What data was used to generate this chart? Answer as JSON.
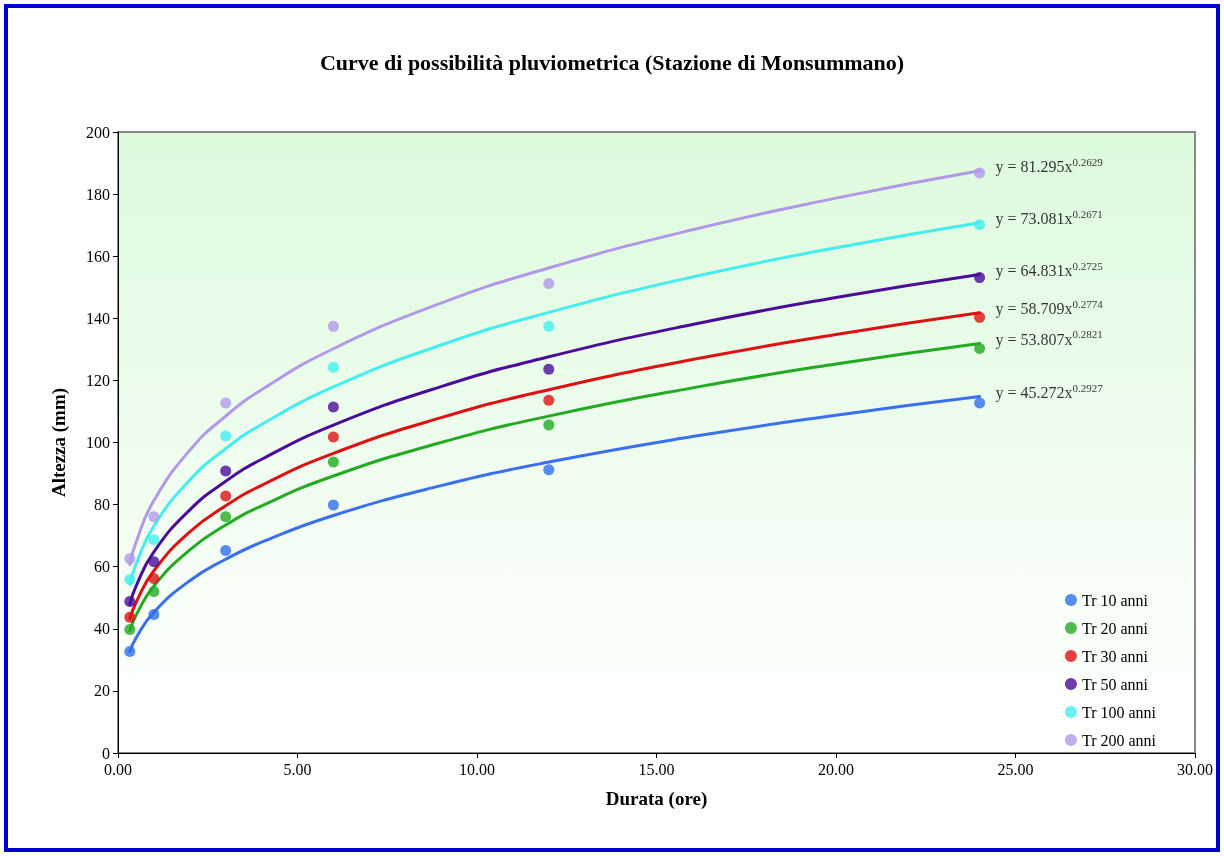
{
  "chart_data": {
    "type": "scatter",
    "title": "Curve di possibilità pluviometrica (Stazione di Monsummano)",
    "xlabel": "Durata (ore)",
    "ylabel": "Altezza (mm)",
    "xlim": [
      0,
      30
    ],
    "xticks": [
      {
        "value": 0,
        "label": "0.00"
      },
      {
        "value": 5,
        "label": "5.00"
      },
      {
        "value": 10,
        "label": "10.00"
      },
      {
        "value": 15,
        "label": "15.00"
      },
      {
        "value": 20,
        "label": "20.00"
      },
      {
        "value": 25,
        "label": "25.00"
      },
      {
        "value": 30,
        "label": "30.00"
      }
    ],
    "ylim": [
      0,
      200
    ],
    "yticks": [
      0,
      20,
      40,
      60,
      80,
      100,
      120,
      140,
      160,
      180,
      200
    ],
    "grid": false,
    "legend": "bottom right",
    "marker": "circle",
    "series": [
      {
        "name": "Tr 10 anni",
        "color": "#2f6fee",
        "x": [
          0.33,
          1,
          3,
          6,
          12,
          24
        ],
        "values": [
          32.7,
          44.6,
          65.2,
          79.9,
          91.2,
          112.7
        ]
      },
      {
        "name": "Tr 20 anni",
        "color": "#22aa22",
        "x": [
          0.33,
          1,
          3,
          6,
          12,
          24
        ],
        "values": [
          39.8,
          52.0,
          76.1,
          93.7,
          105.6,
          130.3
        ]
      },
      {
        "name": "Tr 30 anni",
        "color": "#dd1111",
        "x": [
          0.33,
          1,
          3,
          6,
          12,
          24
        ],
        "values": [
          43.7,
          56.2,
          82.8,
          101.8,
          113.6,
          140.3
        ]
      },
      {
        "name": "Tr 50 anni",
        "color": "#4a0c99",
        "x": [
          0.33,
          1,
          3,
          6,
          12,
          24
        ],
        "values": [
          48.8,
          61.6,
          90.8,
          111.4,
          123.6,
          153.1
        ]
      },
      {
        "name": "Tr 100 anni",
        "color": "#44eeee",
        "x": [
          0.33,
          1,
          3,
          6,
          12,
          24
        ],
        "values": [
          55.9,
          68.7,
          102.1,
          124.2,
          137.4,
          170.1
        ]
      },
      {
        "name": "Tr 200 anni",
        "color": "#b09ae8",
        "x": [
          0.33,
          1,
          3,
          6,
          12,
          24
        ],
        "values": [
          62.6,
          76.1,
          112.7,
          137.4,
          151.2,
          186.8
        ]
      },
      {
        "type": "line",
        "marker": "none",
        "color": "#3a6ff0",
        "x": [
          0.33,
          0.5,
          1,
          2,
          3,
          4,
          6,
          9,
          12,
          16,
          20,
          24
        ],
        "values": [
          32.7,
          37.0,
          45.3,
          55.5,
          62.4,
          67.9,
          76.5,
          86.1,
          93.7,
          101.9,
          108.8,
          114.8
        ]
      },
      {
        "type": "line",
        "marker": "none",
        "color": "#22aa22",
        "x": [
          0.33,
          0.5,
          1,
          2,
          3,
          4,
          6,
          9,
          12,
          16,
          20,
          24
        ],
        "values": [
          39.4,
          44.3,
          53.8,
          65.4,
          73.4,
          79.6,
          89.2,
          100.0,
          108.5,
          117.6,
          125.3,
          131.9
        ]
      },
      {
        "type": "line",
        "marker": "none",
        "color": "#dd1111",
        "x": [
          0.33,
          0.5,
          1,
          2,
          3,
          4,
          6,
          9,
          12,
          16,
          20,
          24
        ],
        "values": [
          43.2,
          48.4,
          58.7,
          71.2,
          79.6,
          86.2,
          96.5,
          108.0,
          117.0,
          126.7,
          134.8,
          141.8
        ]
      },
      {
        "type": "line",
        "marker": "none",
        "color": "#4a0c99",
        "x": [
          0.33,
          0.5,
          1,
          2,
          3,
          4,
          6,
          9,
          12,
          16,
          20,
          24
        ],
        "values": [
          47.9,
          53.7,
          64.8,
          78.3,
          87.5,
          94.6,
          105.6,
          118.0,
          127.6,
          138.0,
          146.7,
          154.1
        ]
      },
      {
        "type": "line",
        "marker": "none",
        "color": "#44eeee",
        "x": [
          0.33,
          0.5,
          1,
          2,
          3,
          4,
          6,
          9,
          12,
          16,
          20,
          24
        ],
        "values": [
          54.4,
          60.7,
          73.1,
          87.9,
          98.0,
          105.8,
          117.9,
          131.4,
          141.9,
          153.3,
          162.7,
          170.8
        ]
      },
      {
        "type": "line",
        "marker": "none",
        "color": "#b09ae8",
        "x": [
          0.33,
          0.5,
          1,
          2,
          3,
          4,
          6,
          9,
          12,
          16,
          20,
          24
        ],
        "values": [
          60.7,
          67.8,
          81.3,
          97.5,
          108.5,
          117.0,
          130.2,
          144.9,
          156.2,
          168.5,
          178.7,
          187.5
        ]
      }
    ],
    "annotations": [
      "y = 45.272x$^{0.2927}$",
      "y = 53.807x$^{0.2821}$",
      "y = 58.709x$^{0.2774}$",
      "y = 64.831x$^{0.2725}$",
      "y = 73.081x$^{0.2671}$",
      "y = 81.295x$^{0.2629}$"
    ]
  }
}
